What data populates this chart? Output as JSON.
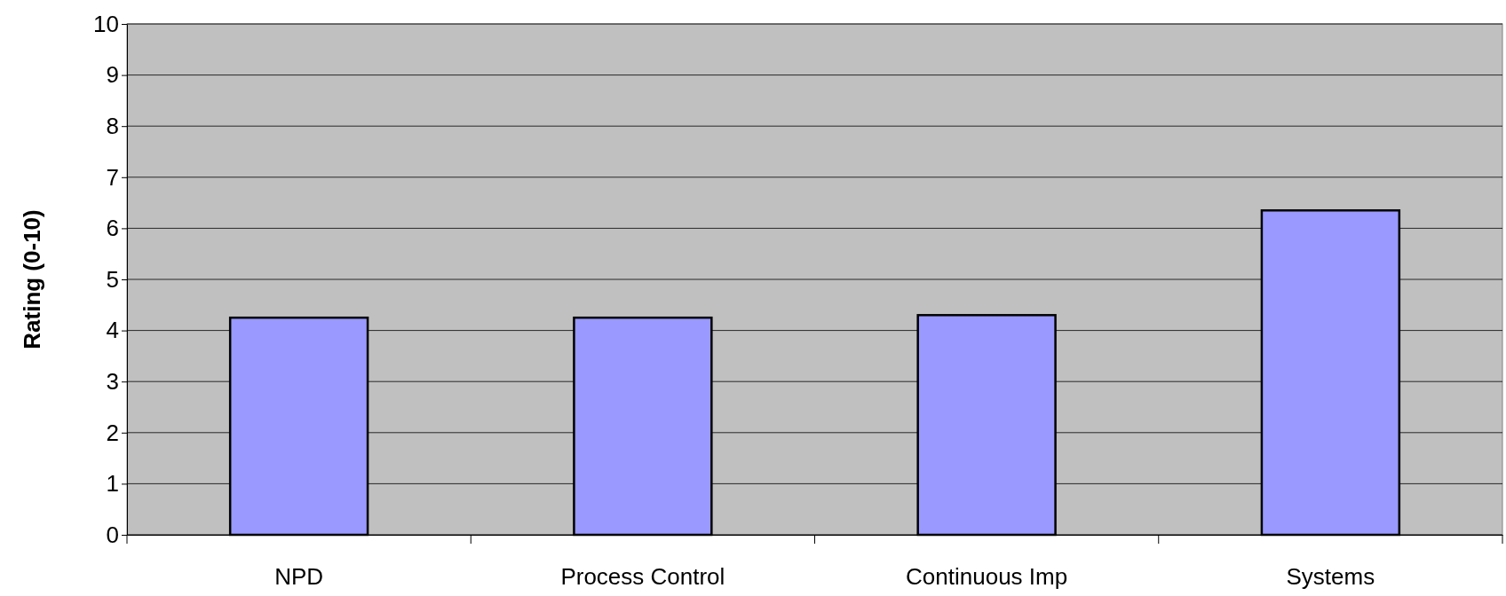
{
  "chart_data": {
    "type": "bar",
    "ylabel": "Rating (0-10)",
    "categories": [
      "NPD",
      "Process Control",
      "Continuous Imp",
      "Systems"
    ],
    "values": [
      4.25,
      4.25,
      4.3,
      6.35
    ],
    "color": "#9999ff",
    "ylim": [
      0,
      10
    ],
    "yticks": [
      0,
      1,
      2,
      3,
      4,
      5,
      6,
      7,
      8,
      9,
      10
    ],
    "grid": "y"
  }
}
